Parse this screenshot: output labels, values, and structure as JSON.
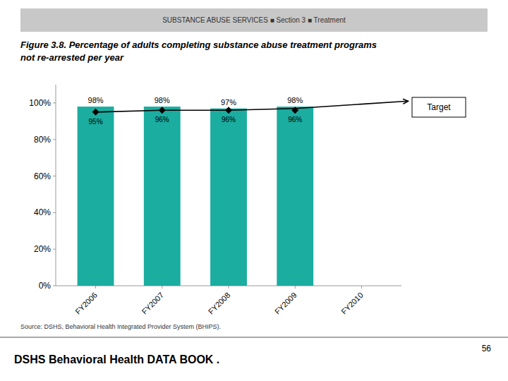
{
  "chart_data": {
    "type": "bar",
    "header": "SUBSTANCE ABUSE SERVICES  ■  Section 3  ■  Treatment",
    "title": [
      "Figure 3.8.  Percentage of adults completing substance abuse treatment programs",
      "not re-arrested per year"
    ],
    "categories": [
      "FY2006",
      "FY2007",
      "FY2008",
      "FY2009",
      "FY2010"
    ],
    "series": [
      {
        "type": "bar",
        "color": "#1aada0",
        "values": [
          98,
          98,
          97,
          98,
          null
        ],
        "value_labels": [
          "98%",
          "98%",
          "97%",
          "98%",
          null
        ],
        "data_labels": true
      },
      {
        "name": "Target",
        "type": "line",
        "color": "#000000",
        "values": [
          95,
          96,
          96,
          97,
          null
        ],
        "arrow_end": {
          "x": 4.7,
          "y": 101
        }
      },
      {
        "type": "scatter",
        "marker": "diamond",
        "color": "#000000",
        "values": [
          95,
          96,
          96,
          96,
          null
        ],
        "value_labels": [
          "95%",
          "96%",
          "96%",
          "96%",
          null
        ],
        "data_labels": true
      }
    ],
    "ylim": [
      0,
      110
    ],
    "yticks": [
      {
        "value": 0,
        "label": "0%"
      },
      {
        "value": 20,
        "label": "20%"
      },
      {
        "value": 40,
        "label": "40%"
      },
      {
        "value": 60,
        "label": "60%"
      },
      {
        "value": 80,
        "label": "80%"
      },
      {
        "value": 100,
        "label": "100%"
      }
    ],
    "grid": false,
    "source": "Source: DSHS, Behavioral Health Integrated Provider System (BHIPS).",
    "footer": "DSHS Behavioral Health DATA BOOK  .",
    "page_number": "56"
  }
}
